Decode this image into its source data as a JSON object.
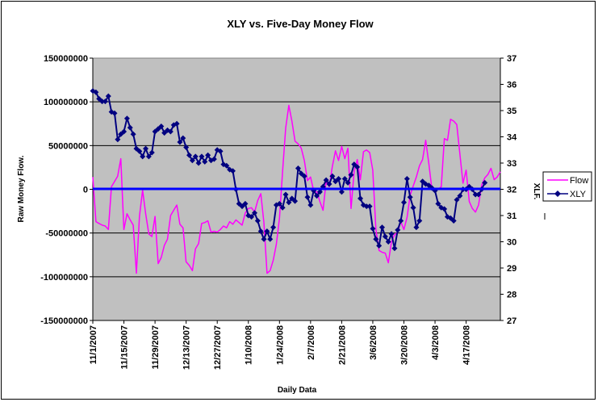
{
  "chart_data": {
    "type": "line",
    "title": "XLY vs. Five-Day Money Flow",
    "xlabel": "Daily Data",
    "ylabel": "Raw Money Flow.",
    "y2label": "XLF.",
    "ylim": [
      -150000000,
      150000000
    ],
    "y2lim": [
      27,
      37
    ],
    "grid": true,
    "legend_position": "right",
    "x_tick_labels": [
      "11/1/2007",
      "11/15/2007",
      "11/29/2007",
      "12/13/2007",
      "12/27/2007",
      "1/10/2008",
      "1/24/2008",
      "2/7/2008",
      "2/21/2008",
      "3/6/2008",
      "3/20/2008",
      "4/3/2008",
      "4/17/2008"
    ],
    "y_tick_labels": [
      "150000000",
      "100000000",
      "50000000",
      "0",
      "-50000000",
      "-100000000",
      "-150000000"
    ],
    "y2_tick_labels": [
      "37",
      "36",
      "35",
      "34",
      "33",
      "32",
      "31",
      "30",
      "29",
      "28",
      "27"
    ],
    "zero_line_color": "#0000ff",
    "plot_bg": "#c0c0c0",
    "series": [
      {
        "name": "Flow",
        "axis": "left",
        "color": "#ff00ff",
        "marker": "none",
        "values": [
          14000000,
          -37000000,
          -39000000,
          -41000000,
          -42000000,
          -46000000,
          3000000,
          9000000,
          15000000,
          35000000,
          -46000000,
          -28000000,
          -35000000,
          -41000000,
          -96000000,
          -31000000,
          -1000000,
          -28000000,
          -51000000,
          -54000000,
          -31000000,
          -85000000,
          -78000000,
          -64000000,
          -57000000,
          -30000000,
          -24000000,
          -18000000,
          -40000000,
          -44000000,
          -83000000,
          -87000000,
          -93000000,
          -68000000,
          -62000000,
          -39000000,
          -38000000,
          -36000000,
          -49000000,
          -48000000,
          -49000000,
          -46000000,
          -42000000,
          -44000000,
          -37000000,
          -40000000,
          -35000000,
          -38000000,
          -41000000,
          -27000000,
          -22000000,
          -21000000,
          -26000000,
          -13000000,
          -5000000,
          -38000000,
          -96000000,
          -93000000,
          -81000000,
          -63000000,
          -33000000,
          21000000,
          70000000,
          96000000,
          78000000,
          55000000,
          52000000,
          47000000,
          33000000,
          10000000,
          14000000,
          -2000000,
          -3000000,
          -14000000,
          -24000000,
          9000000,
          3000000,
          26000000,
          44000000,
          33000000,
          49000000,
          35000000,
          47000000,
          -22000000,
          20000000,
          34000000,
          11000000,
          43000000,
          45000000,
          42000000,
          22000000,
          -46000000,
          -70000000,
          -72000000,
          -73000000,
          -84000000,
          -60000000,
          -52000000,
          -49000000,
          -37000000,
          -46000000,
          -32000000,
          -7000000,
          4000000,
          14000000,
          27000000,
          34000000,
          56000000,
          30000000,
          0,
          -1000000,
          0,
          3000000,
          58000000,
          56000000,
          80000000,
          78000000,
          74000000,
          40000000,
          7000000,
          22000000,
          -14000000,
          -22000000,
          -26000000,
          -18000000,
          5000000,
          13000000,
          17000000,
          24000000,
          11000000,
          14000000,
          20000000
        ]
      },
      {
        "name": "XLY",
        "axis": "right",
        "color": "#000080",
        "marker": "diamond",
        "values": [
          35.75,
          35.7,
          35.45,
          35.35,
          35.35,
          35.55,
          34.95,
          34.9,
          33.9,
          34.1,
          34.2,
          34.7,
          34.35,
          34.1,
          33.55,
          33.45,
          33.25,
          33.55,
          33.25,
          33.4,
          34.2,
          34.3,
          34.4,
          34.15,
          34.25,
          34.2,
          34.45,
          34.5,
          33.8,
          33.95,
          33.6,
          33.3,
          33.1,
          33.25,
          33.0,
          33.25,
          33.05,
          33.3,
          33.1,
          33.15,
          33.5,
          33.45,
          32.95,
          32.9,
          32.75,
          32.7,
          32.0,
          31.45,
          31.35,
          31.45,
          31.0,
          30.95,
          31.1,
          30.8,
          30.4,
          30.1,
          30.4,
          30.1,
          30.55,
          31.4,
          31.45,
          31.3,
          31.8,
          31.5,
          31.65,
          31.55,
          32.8,
          32.6,
          32.5,
          31.7,
          31.4,
          31.95,
          31.75,
          31.9,
          32.1,
          32.35,
          32.2,
          32.5,
          32.3,
          32.4,
          31.9,
          32.4,
          32.25,
          32.55,
          32.95,
          32.85,
          31.65,
          31.4,
          31.35,
          31.35,
          30.5,
          30.1,
          29.85,
          30.55,
          30.2,
          30.0,
          30.3,
          29.75,
          30.45,
          30.8,
          31.5,
          32.4,
          31.7,
          31.3,
          30.55,
          30.8,
          32.3,
          32.2,
          32.15,
          32.05,
          31.95,
          31.45,
          31.3,
          31.25,
          30.95,
          30.9,
          30.8,
          31.6,
          31.75,
          32.0,
          32.0,
          32.1,
          32.0,
          31.8,
          31.8,
          32.0,
          32.25
        ]
      }
    ]
  }
}
